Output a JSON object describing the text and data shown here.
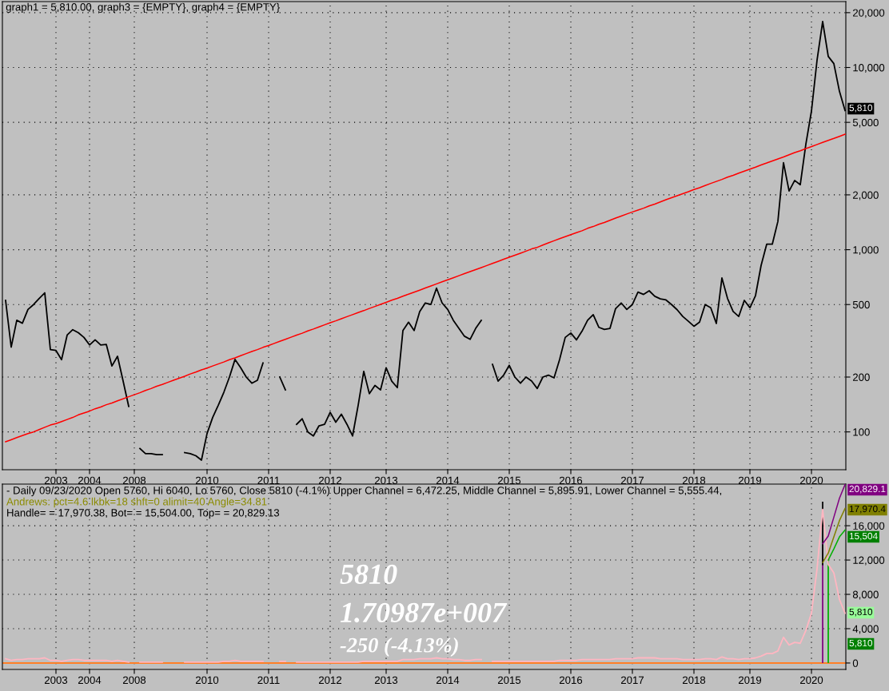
{
  "chart_data": [
    {
      "type": "line",
      "title": "graph1 = 5,810.00, graph3 = {EMPTY}, graph4 = {EMPTY}",
      "log": "y",
      "grid": true,
      "categories": [
        null,
        null,
        null,
        null,
        null,
        null,
        null,
        null,
        null,
        "2003",
        null,
        null,
        null,
        null,
        null,
        "2004",
        null,
        null,
        null,
        null,
        null,
        null,
        null,
        "2008",
        null,
        null,
        null,
        null,
        null,
        null,
        null,
        null,
        null,
        null,
        null,
        null,
        "2010",
        null,
        null,
        null,
        null,
        null,
        null,
        null,
        null,
        null,
        null,
        "2011",
        null,
        null,
        null,
        null,
        null,
        null,
        null,
        null,
        null,
        null,
        "2012",
        null,
        null,
        null,
        null,
        null,
        null,
        null,
        null,
        null,
        "2013",
        null,
        null,
        null,
        null,
        null,
        null,
        null,
        null,
        null,
        null,
        "2014",
        null,
        null,
        null,
        null,
        null,
        null,
        null,
        null,
        null,
        null,
        "2015",
        null,
        null,
        null,
        null,
        null,
        null,
        null,
        null,
        null,
        null,
        "2016",
        null,
        null,
        null,
        null,
        null,
        null,
        null,
        null,
        null,
        null,
        "2017",
        null,
        null,
        null,
        null,
        null,
        null,
        null,
        null,
        null,
        null,
        "2018",
        null,
        null,
        null,
        null,
        null,
        null,
        null,
        null,
        null,
        "2019",
        null,
        null,
        null,
        null,
        null,
        null,
        null,
        null,
        null,
        null,
        "2020",
        null,
        null,
        null,
        null,
        null,
        null
      ],
      "ylim": [
        62,
        23000
      ],
      "yticks": [
        100,
        200,
        500,
        {
          "value": 1000,
          "label": "1,000"
        },
        {
          "value": 2000,
          "label": "2,000"
        },
        {
          "value": 5000,
          "label": "5,000"
        },
        {
          "value": 10000,
          "label": "10,000"
        },
        {
          "value": 20000,
          "label": "20,000"
        }
      ],
      "series": [
        {
          "color": "#000000",
          "values": [
            527,
            292,
            410,
            395,
            470,
            500,
            540,
            580,
            283,
            280,
            249,
            340,
            364,
            350,
            330,
            300,
            320,
            300,
            302,
            230,
            260,
            190,
            138,
            null,
            81,
            76,
            76,
            75,
            75,
            null,
            null,
            null,
            77,
            76,
            74,
            70,
            98,
            120,
            140,
            165,
            200,
            250,
            225,
            200,
            185,
            192,
            239,
            null,
            null,
            200,
            170,
            null,
            110,
            118,
            100,
            95,
            108,
            110,
            128,
            113,
            125,
            110,
            95,
            140,
            215,
            162,
            180,
            170,
            225,
            190,
            175,
            360,
            400,
            360,
            458,
            510,
            501,
            615,
            510,
            470,
            410,
            370,
            335,
            322,
            370,
            410,
            null,
            235,
            190,
            205,
            232,
            200,
            185,
            200,
            190,
            173,
            200,
            205,
            198,
            250,
            330,
            349,
            320,
            357,
            410,
            440,
            375,
            365,
            370,
            475,
            510,
            470,
            500,
            585,
            568,
            595,
            555,
            537,
            530,
            500,
            468,
            430,
            405,
            380,
            400,
            500,
            480,
            394,
            700,
            540,
            458,
            430,
            527,
            480,
            560,
            820,
            1072,
            1072,
            1430,
            3000,
            2100,
            2400,
            2274,
            3800,
            5768,
            11000,
            17870,
            11500,
            10500,
            7400,
            5810
          ]
        },
        {
          "color": "#ff0000",
          "values": [
            88.3,
            90.6,
            93.0,
            95.4,
            97.9,
            100,
            103,
            106,
            109,
            111,
            114,
            117,
            120,
            124,
            127,
            130,
            134,
            137,
            141,
            144,
            148,
            152,
            156,
            160,
            164,
            169,
            173,
            178,
            182,
            187,
            192,
            197,
            202,
            208,
            213,
            219,
            224,
            230,
            236,
            242,
            249,
            255,
            262,
            269,
            276,
            283,
            291,
            298,
            306,
            314,
            322,
            331,
            340,
            348,
            358,
            367,
            377,
            387,
            397,
            407,
            418,
            429,
            440,
            452,
            463,
            476,
            488,
            501,
            514,
            528,
            541,
            556,
            570,
            585,
            600,
            616,
            632,
            649,
            666,
            683,
            701,
            720,
            739,
            758,
            778,
            798,
            819,
            841,
            863,
            886,
            909,
            933,
            957,
            982,
            1010,
            1030,
            1060,
            1090,
            1120,
            1150,
            1180,
            1210,
            1240,
            1270,
            1310,
            1340,
            1380,
            1410,
            1450,
            1490,
            1530,
            1570,
            1610,
            1650,
            1690,
            1740,
            1780,
            1830,
            1880,
            1930,
            1980,
            2030,
            2080,
            2140,
            2190,
            2250,
            2310,
            2370,
            2430,
            2500,
            2560,
            2630,
            2700,
            2770,
            2840,
            2920,
            2990,
            3070,
            3150,
            3230,
            3320,
            3410,
            3490,
            3590,
            3680,
            3780,
            3880,
            3980,
            4080,
            4190,
            4300
          ]
        }
      ],
      "annotations": [
        "5,810"
      ]
    },
    {
      "type": "line",
      "grid": true,
      "categories": [
        null,
        null,
        null,
        null,
        null,
        null,
        null,
        null,
        null,
        "2003",
        null,
        null,
        null,
        null,
        null,
        "2004",
        null,
        null,
        null,
        null,
        null,
        null,
        null,
        "2008",
        null,
        null,
        null,
        null,
        null,
        null,
        null,
        null,
        null,
        null,
        null,
        null,
        "2010",
        null,
        null,
        null,
        null,
        null,
        null,
        null,
        null,
        null,
        null,
        "2011",
        null,
        null,
        null,
        null,
        null,
        null,
        null,
        null,
        null,
        null,
        "2012",
        null,
        null,
        null,
        null,
        null,
        null,
        null,
        null,
        null,
        "2013",
        null,
        null,
        null,
        null,
        null,
        null,
        null,
        null,
        null,
        null,
        "2014",
        null,
        null,
        null,
        null,
        null,
        null,
        null,
        null,
        null,
        null,
        "2015",
        null,
        null,
        null,
        null,
        null,
        null,
        null,
        null,
        null,
        null,
        "2016",
        null,
        null,
        null,
        null,
        null,
        null,
        null,
        null,
        null,
        null,
        "2017",
        null,
        null,
        null,
        null,
        null,
        null,
        null,
        null,
        null,
        null,
        "2018",
        null,
        null,
        null,
        null,
        null,
        null,
        null,
        null,
        null,
        "2019",
        null,
        null,
        null,
        null,
        null,
        null,
        null,
        null,
        null,
        null,
        "2020",
        null,
        null,
        null,
        null,
        null,
        null
      ],
      "ylim": [
        -750,
        20850
      ],
      "yticks": [
        0,
        {
          "value": 4000,
          "label": "4,000"
        },
        {
          "value": 8000,
          "label": "8,000"
        },
        {
          "value": 12000,
          "label": "12,000"
        },
        {
          "value": 16000,
          "label": "16,000"
        }
      ],
      "series": [
        {
          "color": "#ffb6c1",
          "values": [
            500,
            300,
            400,
            400,
            500,
            500,
            500,
            600,
            300,
            300,
            200,
            300,
            400,
            400,
            300,
            300,
            300,
            300,
            300,
            200,
            300,
            200,
            100,
            null,
            100,
            100,
            100,
            100,
            100,
            null,
            null,
            null,
            100,
            100,
            100,
            100,
            100,
            100,
            100,
            200,
            200,
            300,
            200,
            200,
            200,
            200,
            200,
            null,
            null,
            200,
            200,
            null,
            100,
            100,
            100,
            100,
            100,
            100,
            100,
            100,
            100,
            100,
            100,
            100,
            200,
            200,
            200,
            200,
            200,
            200,
            200,
            400,
            400,
            400,
            500,
            500,
            500,
            600,
            500,
            500,
            400,
            400,
            300,
            300,
            400,
            400,
            null,
            200,
            200,
            200,
            200,
            200,
            200,
            200,
            200,
            200,
            200,
            200,
            200,
            300,
            300,
            300,
            300,
            400,
            400,
            400,
            400,
            400,
            400,
            500,
            500,
            500,
            500,
            600,
            600,
            600,
            600,
            500,
            500,
            500,
            500,
            400,
            400,
            400,
            400,
            500,
            500,
            400,
            700,
            500,
            500,
            400,
            500,
            500,
            600,
            800,
            1100,
            1100,
            1400,
            3000,
            2100,
            2400,
            2300,
            3800,
            5800,
            11000,
            17900,
            11500,
            10500,
            7400,
            5800
          ]
        },
        {
          "color": "#800080",
          "values": [
            null,
            null,
            null,
            null,
            null,
            null,
            null,
            null,
            null,
            null,
            null,
            null,
            null,
            null,
            null,
            null,
            null,
            null,
            null,
            null,
            null,
            null,
            null,
            null,
            null,
            null,
            null,
            null,
            null,
            null,
            null,
            null,
            null,
            null,
            null,
            null,
            null,
            null,
            null,
            null,
            null,
            null,
            null,
            null,
            null,
            null,
            null,
            null,
            null,
            null,
            null,
            null,
            null,
            null,
            null,
            null,
            null,
            null,
            null,
            null,
            null,
            null,
            null,
            null,
            null,
            null,
            null,
            null,
            null,
            null,
            null,
            null,
            null,
            null,
            null,
            null,
            null,
            null,
            null,
            null,
            null,
            null,
            null,
            null,
            null,
            null,
            null,
            null,
            null,
            null,
            null,
            null,
            null,
            null,
            null,
            null,
            null,
            null,
            null,
            null,
            null,
            null,
            null,
            null,
            null,
            null,
            null,
            null,
            null,
            null,
            null,
            null,
            null,
            null,
            null,
            null,
            null,
            null,
            null,
            null,
            null,
            null,
            null,
            null,
            null,
            null,
            null,
            null,
            null,
            null,
            null,
            null,
            null,
            null,
            null,
            null,
            null,
            null,
            null,
            null,
            null,
            null,
            null,
            null,
            null,
            null,
            13900,
            14800,
            17000,
            19200,
            20800
          ]
        },
        {
          "color": "#808000",
          "values": [
            null,
            null,
            null,
            null,
            null,
            null,
            null,
            null,
            null,
            null,
            null,
            null,
            null,
            null,
            null,
            null,
            null,
            null,
            null,
            null,
            null,
            null,
            null,
            null,
            null,
            null,
            null,
            null,
            null,
            null,
            null,
            null,
            null,
            null,
            null,
            null,
            null,
            null,
            null,
            null,
            null,
            null,
            null,
            null,
            null,
            null,
            null,
            null,
            null,
            null,
            null,
            null,
            null,
            null,
            null,
            null,
            null,
            null,
            null,
            null,
            null,
            null,
            null,
            null,
            null,
            null,
            null,
            null,
            null,
            null,
            null,
            null,
            null,
            null,
            null,
            null,
            null,
            null,
            null,
            null,
            null,
            null,
            null,
            null,
            null,
            null,
            null,
            null,
            null,
            null,
            null,
            null,
            null,
            null,
            null,
            null,
            null,
            null,
            null,
            null,
            null,
            null,
            null,
            null,
            null,
            null,
            null,
            null,
            null,
            null,
            null,
            null,
            null,
            null,
            null,
            null,
            null,
            null,
            null,
            null,
            null,
            null,
            null,
            null,
            null,
            null,
            null,
            null,
            null,
            null,
            null,
            null,
            null,
            null,
            null,
            null,
            null,
            null,
            null,
            null,
            null,
            null,
            null,
            null,
            null,
            null,
            11700,
            12800,
            14700,
            16600,
            18000
          ]
        },
        {
          "color": "#00b000",
          "values": [
            null,
            null,
            null,
            null,
            null,
            null,
            null,
            null,
            null,
            null,
            null,
            null,
            null,
            null,
            null,
            null,
            null,
            null,
            null,
            null,
            null,
            null,
            null,
            null,
            null,
            null,
            null,
            null,
            null,
            null,
            null,
            null,
            null,
            null,
            null,
            null,
            null,
            null,
            null,
            null,
            null,
            null,
            null,
            null,
            null,
            null,
            null,
            null,
            null,
            null,
            null,
            null,
            null,
            null,
            null,
            null,
            null,
            null,
            null,
            null,
            null,
            null,
            null,
            null,
            null,
            null,
            null,
            null,
            null,
            null,
            null,
            null,
            null,
            null,
            null,
            null,
            null,
            null,
            null,
            null,
            null,
            null,
            null,
            null,
            null,
            null,
            null,
            null,
            null,
            null,
            null,
            null,
            null,
            null,
            null,
            null,
            null,
            null,
            null,
            null,
            null,
            null,
            null,
            null,
            null,
            null,
            null,
            null,
            null,
            null,
            null,
            null,
            null,
            null,
            null,
            null,
            null,
            null,
            null,
            null,
            null,
            null,
            null,
            null,
            null,
            null,
            null,
            null,
            null,
            null,
            null,
            null,
            null,
            null,
            null,
            null,
            null,
            null,
            null,
            null,
            null,
            null,
            null,
            null,
            null,
            null,
            null,
            12000,
            13300,
            14700,
            15500
          ]
        },
        {
          "type": "bar",
          "color": "#800080",
          "values": [
            null,
            null,
            null,
            null,
            null,
            null,
            null,
            null,
            null,
            null,
            null,
            null,
            null,
            null,
            null,
            null,
            null,
            null,
            null,
            null,
            null,
            null,
            null,
            null,
            null,
            null,
            null,
            null,
            null,
            null,
            null,
            null,
            null,
            null,
            null,
            null,
            null,
            null,
            null,
            null,
            null,
            null,
            null,
            null,
            null,
            null,
            null,
            null,
            null,
            null,
            null,
            null,
            null,
            null,
            null,
            null,
            null,
            null,
            null,
            null,
            null,
            null,
            null,
            null,
            null,
            null,
            null,
            null,
            null,
            null,
            null,
            null,
            null,
            null,
            null,
            null,
            null,
            null,
            null,
            null,
            null,
            null,
            null,
            null,
            null,
            null,
            null,
            null,
            null,
            null,
            null,
            null,
            null,
            null,
            null,
            null,
            null,
            null,
            null,
            null,
            null,
            null,
            null,
            null,
            null,
            null,
            null,
            null,
            null,
            null,
            null,
            null,
            null,
            null,
            null,
            null,
            null,
            null,
            null,
            null,
            null,
            null,
            null,
            null,
            null,
            null,
            null,
            null,
            null,
            null,
            null,
            null,
            null,
            null,
            null,
            null,
            null,
            null,
            null,
            null,
            null,
            null,
            null,
            null,
            null,
            null,
            13900,
            null,
            null,
            null,
            null
          ]
        },
        {
          "type": "bar",
          "color": "#00b000",
          "values": [
            null,
            null,
            null,
            null,
            null,
            null,
            null,
            null,
            null,
            null,
            null,
            null,
            null,
            null,
            null,
            null,
            null,
            null,
            null,
            null,
            null,
            null,
            null,
            null,
            null,
            null,
            null,
            null,
            null,
            null,
            null,
            null,
            null,
            null,
            null,
            null,
            null,
            null,
            null,
            null,
            null,
            null,
            null,
            null,
            null,
            null,
            null,
            null,
            null,
            null,
            null,
            null,
            null,
            null,
            null,
            null,
            null,
            null,
            null,
            null,
            null,
            null,
            null,
            null,
            null,
            null,
            null,
            null,
            null,
            null,
            null,
            null,
            null,
            null,
            null,
            null,
            null,
            null,
            null,
            null,
            null,
            null,
            null,
            null,
            null,
            null,
            null,
            null,
            null,
            null,
            null,
            null,
            null,
            null,
            null,
            null,
            null,
            null,
            null,
            null,
            null,
            null,
            null,
            null,
            null,
            null,
            null,
            null,
            null,
            null,
            null,
            null,
            null,
            null,
            null,
            null,
            null,
            null,
            null,
            null,
            null,
            null,
            null,
            null,
            null,
            null,
            null,
            null,
            null,
            null,
            null,
            null,
            null,
            null,
            null,
            null,
            null,
            null,
            null,
            null,
            null,
            null,
            null,
            null,
            null,
            null,
            null,
            12000,
            null,
            null,
            null
          ]
        },
        {
          "type": "bar",
          "color": "#000000",
          "values": [
            null,
            null,
            null,
            null,
            null,
            null,
            null,
            null,
            null,
            null,
            null,
            null,
            null,
            null,
            null,
            null,
            null,
            null,
            null,
            null,
            null,
            null,
            null,
            null,
            null,
            null,
            null,
            null,
            null,
            null,
            null,
            null,
            null,
            null,
            null,
            null,
            null,
            null,
            null,
            null,
            null,
            null,
            null,
            null,
            null,
            null,
            null,
            null,
            null,
            null,
            null,
            null,
            null,
            null,
            null,
            null,
            null,
            null,
            null,
            null,
            null,
            null,
            null,
            null,
            null,
            null,
            null,
            null,
            null,
            null,
            null,
            null,
            null,
            null,
            null,
            null,
            null,
            null,
            null,
            null,
            null,
            null,
            null,
            null,
            null,
            null,
            null,
            null,
            null,
            null,
            null,
            null,
            null,
            null,
            null,
            null,
            null,
            null,
            null,
            null,
            null,
            null,
            null,
            null,
            null,
            null,
            null,
            null,
            null,
            null,
            null,
            null,
            null,
            null,
            null,
            null,
            null,
            null,
            null,
            null,
            null,
            null,
            null,
            null,
            null,
            null,
            null,
            null,
            null,
            null,
            null,
            null,
            null,
            null,
            null,
            null,
            null,
            null,
            null,
            null,
            null,
            null,
            null,
            null,
            null,
            null,
            7400,
            null,
            null,
            null,
            null
          ],
          "base": [
            null,
            null,
            null,
            null,
            null,
            null,
            null,
            null,
            null,
            null,
            null,
            null,
            null,
            null,
            null,
            null,
            null,
            null,
            null,
            null,
            null,
            null,
            null,
            null,
            null,
            null,
            null,
            null,
            null,
            null,
            null,
            null,
            null,
            null,
            null,
            null,
            null,
            null,
            null,
            null,
            null,
            null,
            null,
            null,
            null,
            null,
            null,
            null,
            null,
            null,
            null,
            null,
            null,
            null,
            null,
            null,
            null,
            null,
            null,
            null,
            null,
            null,
            null,
            null,
            null,
            null,
            null,
            null,
            null,
            null,
            null,
            null,
            null,
            null,
            null,
            null,
            null,
            null,
            null,
            null,
            null,
            null,
            null,
            null,
            null,
            null,
            null,
            null,
            null,
            null,
            null,
            null,
            null,
            null,
            null,
            null,
            null,
            null,
            null,
            null,
            null,
            null,
            null,
            null,
            null,
            null,
            null,
            null,
            null,
            null,
            null,
            null,
            null,
            null,
            null,
            null,
            null,
            null,
            null,
            null,
            null,
            null,
            null,
            null,
            null,
            null,
            null,
            null,
            null,
            null,
            null,
            null,
            null,
            null,
            null,
            null,
            null,
            null,
            null,
            null,
            null,
            null,
            null,
            null,
            null,
            null,
            11400,
            null,
            null,
            null,
            null
          ]
        }
      ],
      "ref_lines": [
        {
          "axis": "y",
          "value": 0,
          "color": "#ff7f27"
        }
      ],
      "annotations": [
        "- Daily 09/23/2020 Open 5760, Hi 6040, Lo 5760, Close 5810 (-4.1%) Upper Channel = 6,472.25, Middle Channel = 5,895.91, Lower Channel = 5,555.44,",
        "Andrews: pct=4.6 lkbk=18 shft=0 alimit=40 Angle=34.81",
        "Handle= = 17,970.38, Bot= = 15,504.00, Top= = 20,829.13",
        "5810",
        "1.70987e+007",
        "-250 (-4.13%)",
        "20,829.1",
        "17,970.4",
        "15,504",
        "5,810",
        "5,810"
      ]
    }
  ]
}
